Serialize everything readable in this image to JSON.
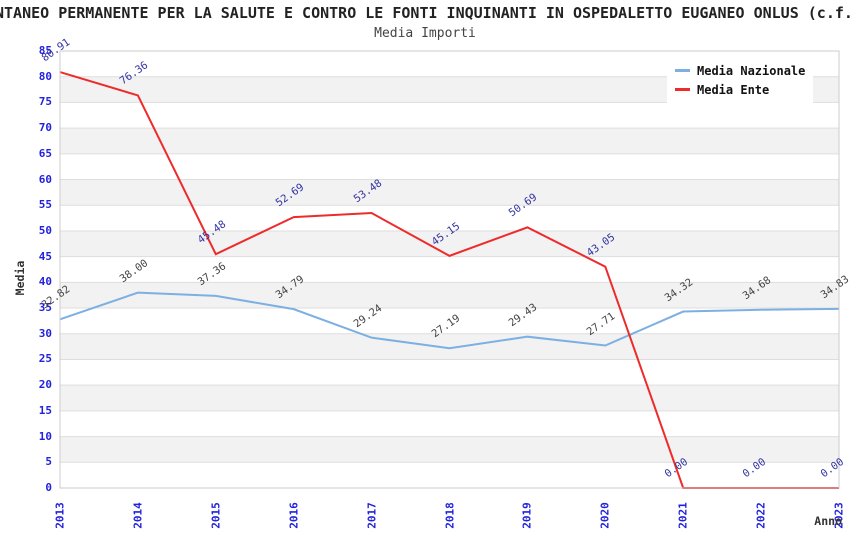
{
  "header": {
    "title": "NTANEO PERMANENTE PER LA SALUTE E CONTRO LE FONTI INQUINANTI IN OSPEDALETTO EUGANEO ONLUS (c.f.",
    "subtitle": "Media Importi"
  },
  "legend": {
    "items": [
      {
        "label": "Media Nazionale",
        "color": "#7CB0E2"
      },
      {
        "label": "Media Ente",
        "color": "#EE2B2B"
      }
    ]
  },
  "chart_data": {
    "type": "line",
    "title": "NTANEO PERMANENTE PER LA SALUTE E CONTRO LE FONTI INQUINANTI IN OSPEDALETTO EUGANEO ONLUS (c.f.",
    "subtitle": "Media Importi",
    "xlabel": "Anno",
    "ylabel": "Media",
    "categories": [
      "2013",
      "2014",
      "2015",
      "2016",
      "2017",
      "2018",
      "2019",
      "2020",
      "2021",
      "2022",
      "2023"
    ],
    "series": [
      {
        "name": "Media Nazionale",
        "color": "#7CB0E2",
        "label_color": "#444444",
        "values": [
          32.82,
          38.0,
          37.36,
          34.79,
          29.24,
          27.19,
          29.43,
          27.71,
          34.32,
          34.68,
          34.83
        ]
      },
      {
        "name": "Media Ente",
        "color": "#EE2B2B",
        "label_color": "#3333A2",
        "values": [
          80.91,
          76.36,
          45.48,
          52.69,
          53.48,
          45.15,
          50.69,
          43.05,
          0.0,
          0.0,
          0.0
        ]
      }
    ],
    "ylim": [
      0,
      85
    ],
    "ytick_step": 5,
    "grid": true,
    "legend_position": "top-right",
    "axis_tick_color": "#2222DD",
    "band_colors": [
      "#FFFFFF",
      "#F2F2F2"
    ],
    "gridline_color": "#DEDEDE",
    "plot_border_color": "#CCCCCC"
  }
}
